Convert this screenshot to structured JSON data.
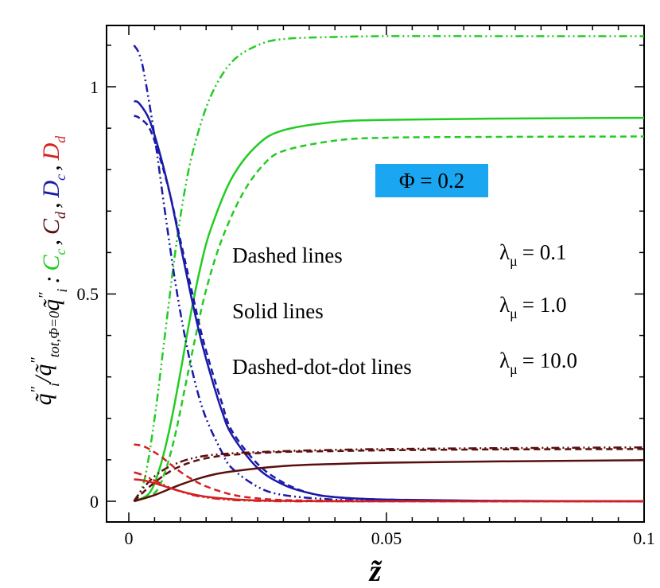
{
  "chart_data": {
    "type": "line",
    "xlim": [
      0,
      0.1
    ],
    "ylim": [
      -0.05,
      1.15
    ],
    "x_ticks": [
      "0",
      "0.05",
      "0.1"
    ],
    "y_ticks": [
      "0",
      "0.5",
      "1"
    ],
    "xlabel": "z̃",
    "ylabel": {
      "part1": "q̃ᵢ″ / q̃″tot,Φ=0",
      "part2": "q̃ᵢ″ : C̃c , C̃d , D̃c , D̃d",
      "ratio_q": "q̃",
      "ratio_prime": "″",
      "ratio_sub": "i",
      "ratio_slash": "/",
      "ratio_sub_tot": "tot,Φ=0",
      "colon": ":",
      "comma": ",",
      "C": "C",
      "D": "D",
      "sub_c": "c",
      "sub_d": "d"
    },
    "annotations": {
      "phi_label": "Φ = 0.2",
      "legend_rows": [
        {
          "style": "Dashed lines",
          "lambda": "λμ = 0.1"
        },
        {
          "style": "Solid lines",
          "lambda": "λμ = 1.0"
        },
        {
          "style": "Dashed-dot-dot lines",
          "lambda": "λμ = 10.0"
        }
      ],
      "lambda_symbol": "λ",
      "lambda_sub": "μ",
      "lambda_values": [
        "= 0.1",
        "= 1.0",
        "= 10.0"
      ]
    },
    "series": [
      {
        "name": "Cc, λμ=1.0",
        "quantity": "Cc",
        "color": "#22cc22",
        "dash": "solid",
        "x": [
          0.001,
          0.004,
          0.006,
          0.008,
          0.01,
          0.012,
          0.014,
          0.016,
          0.02,
          0.025,
          0.03,
          0.04,
          0.05,
          0.07,
          0.1
        ],
        "y": [
          0.0,
          0.02,
          0.08,
          0.18,
          0.31,
          0.45,
          0.57,
          0.66,
          0.78,
          0.86,
          0.895,
          0.915,
          0.92,
          0.923,
          0.925
        ]
      },
      {
        "name": "Cc, λμ=0.1",
        "quantity": "Cc",
        "color": "#22cc22",
        "dash": "dashed",
        "x": [
          0.001,
          0.005,
          0.007,
          0.009,
          0.011,
          0.013,
          0.015,
          0.018,
          0.022,
          0.026,
          0.03,
          0.04,
          0.05,
          0.07,
          0.1
        ],
        "y": [
          0.0,
          0.02,
          0.07,
          0.16,
          0.28,
          0.4,
          0.51,
          0.63,
          0.74,
          0.81,
          0.845,
          0.87,
          0.877,
          0.879,
          0.88
        ]
      },
      {
        "name": "Cc, λμ=10.0",
        "quantity": "Cc",
        "color": "#22cc22",
        "dash": "dashdotdot",
        "x": [
          0.001,
          0.003,
          0.005,
          0.007,
          0.009,
          0.011,
          0.013,
          0.016,
          0.02,
          0.025,
          0.03,
          0.04,
          0.05,
          0.07,
          0.1
        ],
        "y": [
          0.0,
          0.05,
          0.2,
          0.4,
          0.6,
          0.76,
          0.87,
          0.98,
          1.06,
          1.1,
          1.115,
          1.12,
          1.122,
          1.122,
          1.122
        ]
      },
      {
        "name": "Dc, λμ=1.0",
        "quantity": "Dc",
        "color": "#1a1aa8",
        "dash": "solid",
        "x": [
          0.001,
          0.002,
          0.004,
          0.006,
          0.008,
          0.01,
          0.012,
          0.014,
          0.016,
          0.018,
          0.02,
          0.025,
          0.03,
          0.035,
          0.04,
          0.05,
          0.07,
          0.1
        ],
        "y": [
          0.965,
          0.96,
          0.92,
          0.84,
          0.74,
          0.62,
          0.5,
          0.39,
          0.3,
          0.22,
          0.16,
          0.08,
          0.04,
          0.02,
          0.01,
          0.004,
          0.001,
          0.0
        ]
      },
      {
        "name": "Dc, λμ=0.1",
        "quantity": "Dc",
        "color": "#1a1aa8",
        "dash": "dashed",
        "x": [
          0.001,
          0.002,
          0.004,
          0.006,
          0.008,
          0.01,
          0.012,
          0.014,
          0.016,
          0.018,
          0.02,
          0.025,
          0.03,
          0.035,
          0.04,
          0.05,
          0.07,
          0.1
        ],
        "y": [
          0.93,
          0.925,
          0.9,
          0.83,
          0.74,
          0.63,
          0.52,
          0.41,
          0.32,
          0.24,
          0.17,
          0.09,
          0.045,
          0.02,
          0.01,
          0.004,
          0.001,
          0.0
        ]
      },
      {
        "name": "Dc, λμ=10.0",
        "quantity": "Dc",
        "color": "#1a1aa8",
        "dash": "dashdotdot",
        "x": [
          0.001,
          0.002,
          0.003,
          0.005,
          0.007,
          0.009,
          0.011,
          0.013,
          0.015,
          0.018,
          0.02,
          0.025,
          0.03,
          0.04,
          0.05,
          0.07,
          0.1
        ],
        "y": [
          1.1,
          1.08,
          1.03,
          0.88,
          0.7,
          0.53,
          0.39,
          0.28,
          0.2,
          0.12,
          0.08,
          0.035,
          0.015,
          0.004,
          0.001,
          0.0,
          0.0
        ]
      },
      {
        "name": "Cd, λμ=1.0",
        "quantity": "Cd",
        "color": "#5a0f0f",
        "dash": "solid",
        "x": [
          0.001,
          0.005,
          0.01,
          0.015,
          0.02,
          0.03,
          0.04,
          0.05,
          0.07,
          0.1
        ],
        "y": [
          0.0,
          0.015,
          0.04,
          0.06,
          0.072,
          0.085,
          0.09,
          0.093,
          0.096,
          0.099
        ]
      },
      {
        "name": "Cd, λμ=0.1",
        "quantity": "Cd",
        "color": "#5a0f0f",
        "dash": "dashed",
        "x": [
          0.001,
          0.004,
          0.008,
          0.012,
          0.016,
          0.02,
          0.025,
          0.03,
          0.04,
          0.05,
          0.07,
          0.1
        ],
        "y": [
          0.0,
          0.035,
          0.072,
          0.094,
          0.106,
          0.112,
          0.116,
          0.119,
          0.121,
          0.123,
          0.125,
          0.126
        ]
      },
      {
        "name": "Cd, λμ=10.0",
        "quantity": "Cd",
        "color": "#5a0f0f",
        "dash": "dashdotdot",
        "x": [
          0.001,
          0.003,
          0.006,
          0.01,
          0.014,
          0.018,
          0.022,
          0.026,
          0.03,
          0.04,
          0.05,
          0.07,
          0.1
        ],
        "y": [
          0.0,
          0.035,
          0.07,
          0.095,
          0.108,
          0.114,
          0.117,
          0.119,
          0.121,
          0.124,
          0.126,
          0.128,
          0.13
        ]
      },
      {
        "name": "Dd, λμ=1.0",
        "quantity": "Dd",
        "color": "#d42020",
        "dash": "solid",
        "x": [
          0.001,
          0.003,
          0.006,
          0.009,
          0.012,
          0.015,
          0.02,
          0.025,
          0.03,
          0.04,
          0.05,
          0.1
        ],
        "y": [
          0.053,
          0.05,
          0.04,
          0.028,
          0.018,
          0.011,
          0.005,
          0.002,
          0.001,
          0.0,
          0.0,
          0.0
        ]
      },
      {
        "name": "Dd, λμ=0.1",
        "quantity": "Dd",
        "color": "#d42020",
        "dash": "dashed",
        "x": [
          0.001,
          0.003,
          0.006,
          0.009,
          0.012,
          0.015,
          0.02,
          0.025,
          0.03,
          0.04,
          0.05,
          0.1
        ],
        "y": [
          0.137,
          0.132,
          0.11,
          0.08,
          0.055,
          0.036,
          0.016,
          0.007,
          0.003,
          0.001,
          0.0,
          0.0
        ]
      },
      {
        "name": "Dd, λμ=10.0",
        "quantity": "Dd",
        "color": "#d42020",
        "dash": "dashdotdot",
        "x": [
          0.001,
          0.003,
          0.005,
          0.008,
          0.011,
          0.014,
          0.018,
          0.022,
          0.03,
          0.04,
          0.05,
          0.1
        ],
        "y": [
          0.07,
          0.062,
          0.05,
          0.033,
          0.02,
          0.011,
          0.005,
          0.002,
          0.0,
          0.0,
          0.0,
          0.0
        ]
      }
    ]
  }
}
